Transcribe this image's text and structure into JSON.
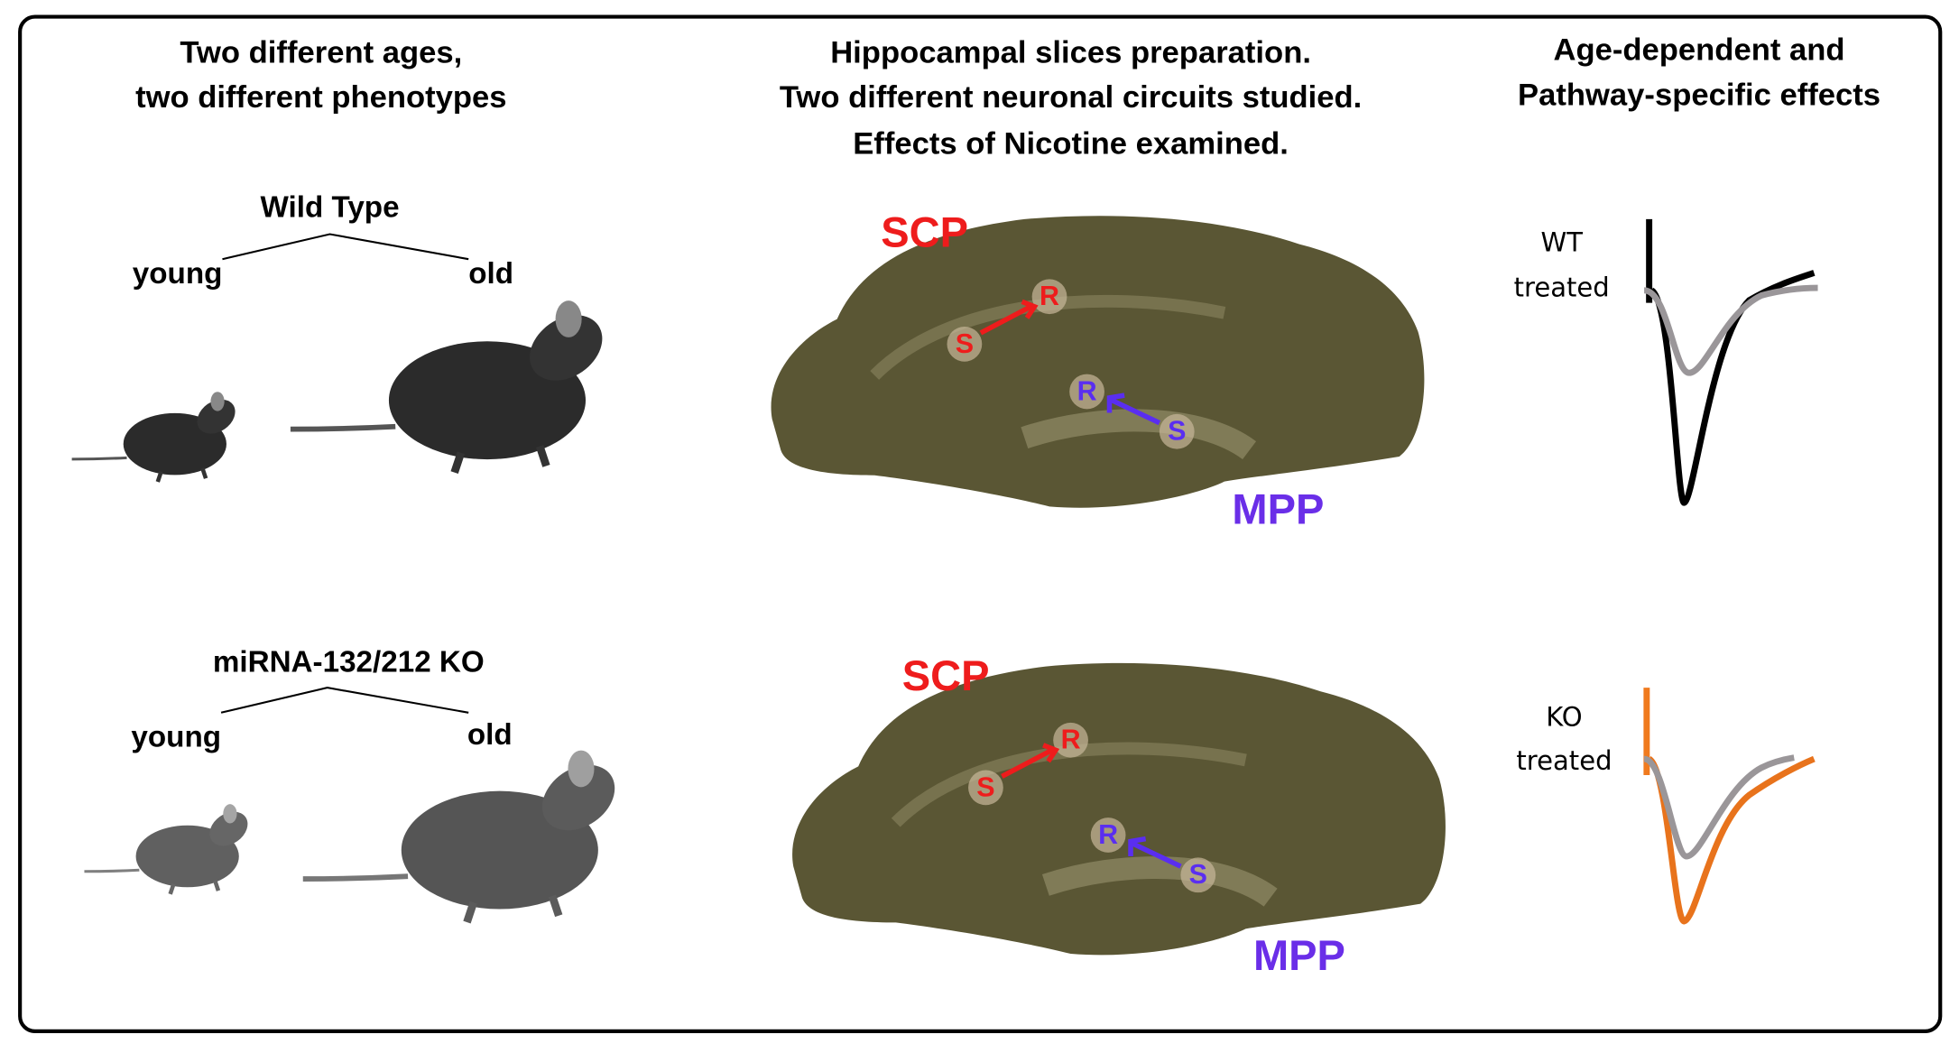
{
  "columns": [
    {
      "title_lines": [
        "Two different ages,",
        "two different phenotypes"
      ]
    },
    {
      "title_lines": [
        "Hippocampal slices preparation.",
        "Two different neuronal circuits studied.",
        "Effects of Nicotine examined."
      ]
    },
    {
      "title_lines": [
        "Age-dependent and",
        "Pathway-specific effects"
      ]
    }
  ],
  "rows": [
    {
      "genotype": "Wild Type",
      "young": "young",
      "old": "old",
      "slice": {
        "pathway_1": "SCP",
        "pathway_2": "MPP",
        "p1_stim": "S",
        "p1_rec": "R",
        "p2_rec": "R",
        "p2_stim": "S"
      },
      "trace_label_lines": [
        "WT",
        "treated"
      ]
    },
    {
      "genotype": "miRNA-132/212 KO",
      "young": "young",
      "old": "old",
      "slice": {
        "pathway_1": "SCP",
        "pathway_2": "MPP",
        "p1_stim": "S",
        "p1_rec": "R",
        "p2_rec": "R",
        "p2_stim": "S"
      },
      "trace_label_lines": [
        "KO",
        "treated"
      ]
    }
  ]
}
